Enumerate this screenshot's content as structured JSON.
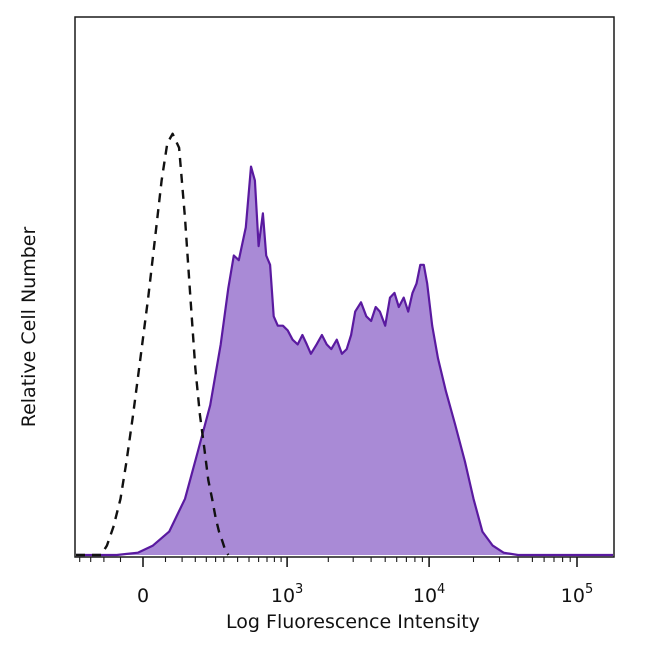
{
  "chart_data": {
    "type": "area",
    "xlabel": "Log Fluorescence Intensity",
    "ylabel": "Relative Cell Number",
    "x_scale": "biexponential",
    "xlim": [
      -300,
      200000
    ],
    "ylim": [
      0,
      100
    ],
    "x_ticks": [
      {
        "value": 0,
        "base": "0",
        "exp": ""
      },
      {
        "value": 1000,
        "base": "10",
        "exp": "3"
      },
      {
        "value": 10000,
        "base": "10",
        "exp": "4"
      },
      {
        "value": 100000,
        "base": "10",
        "exp": "5"
      }
    ],
    "grid": false,
    "legend": "none",
    "series": [
      {
        "style": "filled",
        "color": "#5a1aa0",
        "fill": "#a98ad6",
        "x": [
          -300,
          -60,
          -10,
          20,
          60,
          110,
          160,
          220,
          280,
          330,
          370,
          410,
          470,
          520,
          560,
          600,
          650,
          690,
          740,
          790,
          850,
          930,
          1010,
          1100,
          1200,
          1300,
          1400,
          1500,
          1650,
          1800,
          1950,
          2100,
          2300,
          2500,
          2700,
          2900,
          3100,
          3400,
          3700,
          4000,
          4300,
          4600,
          5000,
          5400,
          5800,
          6200,
          6700,
          7200,
          7700,
          8200,
          8700,
          9200,
          9700,
          10500,
          11500,
          13000,
          15000,
          17500,
          20000,
          23000,
          27000,
          32000,
          40000,
          60000,
          100000,
          200000
        ],
        "y": [
          0,
          0,
          0.5,
          2,
          5,
          12,
          22,
          32,
          45,
          57,
          64,
          63,
          70,
          83,
          80,
          66,
          73,
          64,
          62,
          51,
          49,
          49,
          48,
          46,
          45,
          47,
          45,
          43,
          45,
          47,
          45,
          44,
          46,
          43,
          44,
          47,
          52,
          54,
          51,
          50,
          53,
          52,
          49,
          55,
          56,
          53,
          55,
          52,
          56,
          58,
          62,
          62,
          58,
          49,
          42,
          35,
          28,
          20,
          12,
          5,
          2,
          0.5,
          0,
          0,
          0,
          0
        ]
      },
      {
        "style": "dashed",
        "color": "#111111",
        "x": [
          -300,
          -110,
          -90,
          -70,
          -50,
          -35,
          -20,
          -5,
          10,
          25,
          40,
          55,
          70,
          90,
          110,
          130,
          150,
          170,
          190,
          210,
          230,
          250,
          270,
          290,
          310,
          330
        ],
        "y": [
          0,
          0,
          2,
          6,
          12,
          20,
          30,
          42,
          55,
          68,
          80,
          88,
          90,
          87,
          72,
          55,
          40,
          30,
          23,
          16,
          12,
          8,
          5,
          3,
          1,
          0
        ]
      }
    ]
  }
}
